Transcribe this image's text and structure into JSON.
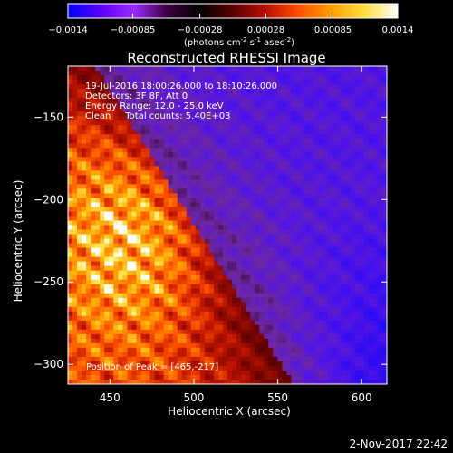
{
  "colorbar": {
    "ticks": [
      "-0.0014",
      "-0.00085",
      "-0.00028",
      "0.00028",
      "0.00085",
      "0.0014"
    ],
    "range": [
      -0.0014,
      0.0014
    ],
    "units_parts": [
      "(photons cm",
      "-2",
      " s",
      "-1",
      " asec",
      "-2",
      ")"
    ],
    "colors": [
      "#0000ff",
      "#5a00ff",
      "#9a2cff",
      "#3a0040",
      "#000000",
      "#5a0000",
      "#b81000",
      "#ff5000",
      "#ffa000",
      "#ffe040",
      "#ffffff"
    ]
  },
  "title": "Reconstructed RHESSI Image",
  "annotations": {
    "lines": [
      "19-Jul-2016 18:00:26.000 to 18:10:26.000",
      "Detectors: 3F 8F, Att 0",
      "Energy Range: 12.0 - 25.0 keV",
      "Clean     Total counts: 5.40E+03"
    ],
    "peak": "Position of Peak = [465,-217]"
  },
  "footer": {
    "timestamp": "2-Nov-2017 22:42"
  },
  "chart_data": {
    "type": "heatmap",
    "title": "Reconstructed RHESSI Image",
    "xlabel": "Heliocentric X (arcsec)",
    "ylabel": "Heliocentric Y (arcsec)",
    "xlim": [
      425,
      615
    ],
    "ylim": [
      -312,
      -119
    ],
    "xticks": [
      450,
      500,
      550,
      600
    ],
    "yticks": [
      -150,
      -200,
      -250,
      -300
    ],
    "xtick_labels": [
      "450",
      "500",
      "550",
      "600"
    ],
    "ytick_labels": [
      "−150",
      "−200",
      "−250",
      "−300"
    ],
    "peak": [
      465,
      -217
    ],
    "value_range": [
      -0.0014,
      0.0014
    ],
    "total_counts": 5400,
    "energy_range_keV": [
      12.0,
      25.0
    ]
  }
}
